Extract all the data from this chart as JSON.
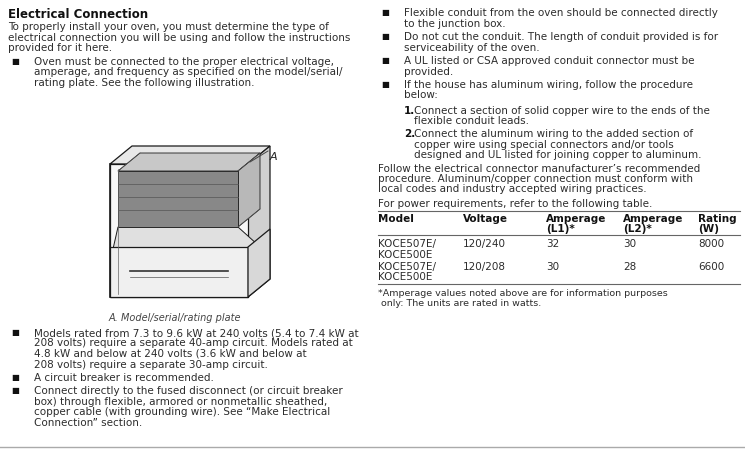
{
  "title": "Electrical Connection",
  "bg_color": "#ffffff",
  "body_color": "#2c2c2c",
  "dark_color": "#111111",
  "intro_text": "To properly install your oven, you must determine the type of electrical connection you will be using and follow the instructions provided for it here.",
  "left_bullets": [
    "Oven must be connected to the proper electrical voltage, amperage, and frequency as specified on the model/serial/ rating plate. See the following illustration.",
    "Models rated from 7.3 to 9.6 kW at 240 volts (5.4 to 7.4 kW at 208 volts) require a separate 40-amp circuit. Models rated at 4.8 kW and below at 240 volts (3.6 kW and below at 208 volts) require a separate 30-amp circuit.",
    "A circuit breaker is recommended.",
    "Connect directly to the fused disconnect (or circuit breaker box) through flexible, armored or nonmetallic sheathed, copper cable (with grounding wire). See “Make Electrical Connection” section."
  ],
  "right_bullets": [
    "Flexible conduit from the oven should be connected directly to the junction box.",
    "Do not cut the conduit. The length of conduit provided is for serviceability of the oven.",
    "A UL listed or CSA approved conduit connector must be provided.",
    "If the house has aluminum wiring, follow the procedure below:"
  ],
  "numbered_items": [
    "Connect a section of solid copper wire to the ends of the flexible conduit leads.",
    "Connect the aluminum wiring to the added section of copper wire using special connectors and/or tools designed and UL listed for joining copper to aluminum."
  ],
  "follow_text": "Follow the electrical connector manufacturer’s recommended procedure. Aluminum/copper connection must conform with local codes and industry accepted wiring practices.",
  "power_text": "For power requirements, refer to the following table.",
  "table_headers": [
    "Model",
    "Voltage",
    "Amperage\n(L1)*",
    "Amperage\n(L2)*",
    "Rating\n(W)"
  ],
  "table_rows": [
    [
      "KOCE507E/\nKOCE500E",
      "120/240",
      "32",
      "30",
      "8000"
    ],
    [
      "KOCE507E/\nKOCE500E",
      "120/208",
      "30",
      "28",
      "6600"
    ]
  ],
  "footnote": "*Amperage values noted above are for information purposes only: The units are rated in watts.",
  "caption": "A. Model/serial/rating plate",
  "font_size": 7.5,
  "title_font_size": 8.5,
  "caption_font_size": 7.0
}
